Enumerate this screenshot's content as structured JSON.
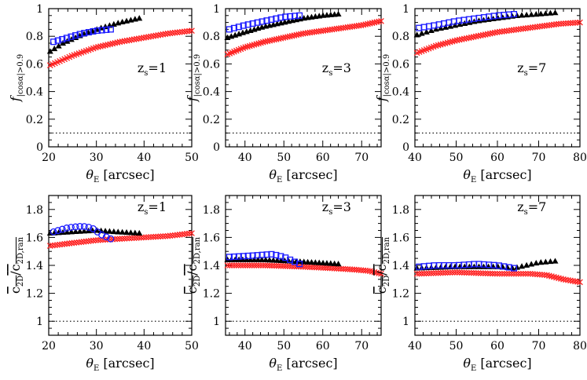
{
  "colors": {
    "red": "#ff2020",
    "black": "#000000",
    "blue": "#1a1aff",
    "axis": "#000000",
    "reference_line": "#000000"
  },
  "labels": {
    "x_axis_symbol": "θ",
    "x_axis_subscript": "E",
    "x_axis_unit": "[arcsec]",
    "top_y_axis_symbol": "f",
    "top_y_axis_subscript": "|cosα|>0.9",
    "bottom_y_axis_numerator": "c",
    "bottom_y_axis_numerator_sub": "2D",
    "bottom_y_axis_denominator": "c",
    "bottom_y_axis_denominator_sub": "2D,ran",
    "z_symbol": "z",
    "z_subscript": "s"
  },
  "chart_data": [
    {
      "type": "scatter",
      "panel": "top-left",
      "z_value": "=1",
      "xlim": [
        20,
        50
      ],
      "ylim": [
        0,
        1
      ],
      "xticks": [
        "20",
        "30",
        "40",
        "50"
      ],
      "yticks": [
        "0",
        "0.2",
        "0.4",
        "0.6",
        "0.8",
        "1"
      ],
      "reference_line": 0.1,
      "series": [
        {
          "marker": "cross",
          "color": "red",
          "x_start": 20.3,
          "x_end": 50.0,
          "n": 60,
          "y_points": [
            [
              20.3,
              0.59
            ],
            [
              25,
              0.66
            ],
            [
              30,
              0.72
            ],
            [
              35,
              0.76
            ],
            [
              40,
              0.79
            ],
            [
              45,
              0.82
            ],
            [
              50,
              0.84
            ]
          ]
        },
        {
          "marker": "triangle",
          "color": "black",
          "x_start": 20.3,
          "x_end": 39.0,
          "n": 22,
          "y_points": [
            [
              20.3,
              0.69
            ],
            [
              23,
              0.75
            ],
            [
              27,
              0.81
            ],
            [
              31,
              0.86
            ],
            [
              35,
              0.9
            ],
            [
              39,
              0.93
            ]
          ]
        },
        {
          "marker": "square",
          "color": "blue",
          "x_start": 21.0,
          "x_end": 33.0,
          "n": 14,
          "y_points": [
            [
              21,
              0.76
            ],
            [
              24,
              0.79
            ],
            [
              27,
              0.82
            ],
            [
              30,
              0.84
            ],
            [
              33,
              0.85
            ]
          ]
        }
      ]
    },
    {
      "type": "scatter",
      "panel": "top-middle",
      "z_value": "=3",
      "xlim": [
        35,
        75
      ],
      "ylim": [
        0,
        1
      ],
      "xticks": [
        "40",
        "50",
        "60",
        "70"
      ],
      "yticks": [
        "0",
        "0.2",
        "0.4",
        "0.6",
        "0.8",
        "1"
      ],
      "reference_line": 0.1,
      "series": [
        {
          "marker": "cross",
          "color": "red",
          "x_start": 35.5,
          "x_end": 75.0,
          "n": 70,
          "y_points": [
            [
              35.5,
              0.67
            ],
            [
              40,
              0.72
            ],
            [
              45,
              0.76
            ],
            [
              50,
              0.79
            ],
            [
              55,
              0.82
            ],
            [
              60,
              0.84
            ],
            [
              65,
              0.86
            ],
            [
              70,
              0.88
            ],
            [
              75,
              0.91
            ]
          ]
        },
        {
          "marker": "triangle",
          "color": "black",
          "x_start": 35.5,
          "x_end": 64.0,
          "n": 30,
          "y_points": [
            [
              35.5,
              0.79
            ],
            [
              40,
              0.83
            ],
            [
              45,
              0.87
            ],
            [
              50,
              0.9
            ],
            [
              55,
              0.93
            ],
            [
              60,
              0.95
            ],
            [
              64,
              0.96
            ]
          ]
        },
        {
          "marker": "square",
          "color": "blue",
          "x_start": 36.0,
          "x_end": 54.0,
          "n": 16,
          "y_points": [
            [
              36,
              0.85
            ],
            [
              40,
              0.88
            ],
            [
              45,
              0.91
            ],
            [
              50,
              0.94
            ],
            [
              54,
              0.95
            ]
          ]
        }
      ]
    },
    {
      "type": "scatter",
      "panel": "top-right",
      "z_value": "=7",
      "xlim": [
        40,
        80
      ],
      "ylim": [
        0,
        1
      ],
      "xticks": [
        "40",
        "50",
        "60",
        "70",
        "80"
      ],
      "yticks": [
        "0",
        "0.2",
        "0.4",
        "0.6",
        "0.8",
        "1"
      ],
      "reference_line": 0.1,
      "series": [
        {
          "marker": "cross",
          "color": "red",
          "x_start": 40.5,
          "x_end": 80.0,
          "n": 70,
          "y_points": [
            [
              40.5,
              0.68
            ],
            [
              45,
              0.73
            ],
            [
              50,
              0.77
            ],
            [
              55,
              0.8
            ],
            [
              60,
              0.83
            ],
            [
              65,
              0.85
            ],
            [
              70,
              0.87
            ],
            [
              75,
              0.89
            ],
            [
              80,
              0.9
            ]
          ]
        },
        {
          "marker": "triangle",
          "color": "black",
          "x_start": 40.5,
          "x_end": 74.0,
          "n": 30,
          "y_points": [
            [
              40.5,
              0.81
            ],
            [
              45,
              0.85
            ],
            [
              50,
              0.88
            ],
            [
              55,
              0.91
            ],
            [
              60,
              0.93
            ],
            [
              65,
              0.95
            ],
            [
              70,
              0.96
            ],
            [
              74,
              0.97
            ]
          ]
        },
        {
          "marker": "square",
          "color": "blue",
          "x_start": 41.0,
          "x_end": 64.0,
          "n": 20,
          "y_points": [
            [
              41,
              0.86
            ],
            [
              45,
              0.88
            ],
            [
              50,
              0.91
            ],
            [
              55,
              0.93
            ],
            [
              60,
              0.95
            ],
            [
              64,
              0.96
            ]
          ]
        }
      ]
    },
    {
      "type": "scatter",
      "panel": "bottom-left",
      "z_value": "=1",
      "xlim": [
        20,
        50
      ],
      "ylim": [
        0.9,
        1.9
      ],
      "xticks": [
        "20",
        "30",
        "40",
        "50"
      ],
      "yticks": [
        "1",
        "1.2",
        "1.4",
        "1.6",
        "1.8"
      ],
      "reference_line": 1.0,
      "series": [
        {
          "marker": "cross",
          "color": "red",
          "x_start": 20.3,
          "x_end": 50.0,
          "n": 60,
          "y_points": [
            [
              20.3,
              1.54
            ],
            [
              25,
              1.56
            ],
            [
              30,
              1.58
            ],
            [
              35,
              1.59
            ],
            [
              40,
              1.6
            ],
            [
              45,
              1.61
            ],
            [
              50,
              1.63
            ]
          ]
        },
        {
          "marker": "triangle",
          "color": "black",
          "x_start": 20.3,
          "x_end": 39.0,
          "n": 22,
          "y_points": [
            [
              20.3,
              1.63
            ],
            [
              25,
              1.64
            ],
            [
              30,
              1.65
            ],
            [
              34,
              1.64
            ],
            [
              39,
              1.63
            ]
          ]
        },
        {
          "marker": "circle",
          "color": "blue",
          "x_start": 21.0,
          "x_end": 33.0,
          "n": 14,
          "y_points": [
            [
              21,
              1.64
            ],
            [
              24,
              1.67
            ],
            [
              27,
              1.68
            ],
            [
              29,
              1.67
            ],
            [
              31,
              1.62
            ],
            [
              33,
              1.59
            ]
          ]
        }
      ]
    },
    {
      "type": "scatter",
      "panel": "bottom-middle",
      "z_value": "=3",
      "xlim": [
        35,
        75
      ],
      "ylim": [
        0.9,
        1.9
      ],
      "xticks": [
        "40",
        "50",
        "60",
        "70"
      ],
      "yticks": [
        "1",
        "1.2",
        "1.4",
        "1.6",
        "1.8"
      ],
      "reference_line": 1.0,
      "series": [
        {
          "marker": "cross",
          "color": "red",
          "x_start": 35.5,
          "x_end": 75.0,
          "n": 70,
          "y_points": [
            [
              35.5,
              1.4
            ],
            [
              45,
              1.4
            ],
            [
              55,
              1.39
            ],
            [
              62,
              1.38
            ],
            [
              68,
              1.37
            ],
            [
              72,
              1.36
            ],
            [
              75,
              1.34
            ]
          ]
        },
        {
          "marker": "triangle",
          "color": "black",
          "x_start": 35.5,
          "x_end": 64.0,
          "n": 30,
          "y_points": [
            [
              35.5,
              1.44
            ],
            [
              45,
              1.44
            ],
            [
              52,
              1.43
            ],
            [
              58,
              1.42
            ],
            [
              64,
              1.41
            ]
          ]
        },
        {
          "marker": "square",
          "color": "blue",
          "x_start": 36.0,
          "x_end": 54.0,
          "n": 16,
          "y_points": [
            [
              36,
              1.46
            ],
            [
              42,
              1.47
            ],
            [
              47,
              1.48
            ],
            [
              50,
              1.46
            ],
            [
              54,
              1.41
            ]
          ]
        }
      ]
    },
    {
      "type": "scatter",
      "panel": "bottom-right",
      "z_value": "=7",
      "xlim": [
        40,
        80
      ],
      "ylim": [
        0.9,
        1.9
      ],
      "xticks": [
        "40",
        "50",
        "60",
        "70",
        "80"
      ],
      "yticks": [
        "1",
        "1.2",
        "1.4",
        "1.6",
        "1.8"
      ],
      "reference_line": 1.0,
      "series": [
        {
          "marker": "cross",
          "color": "red",
          "x_start": 40.5,
          "x_end": 80.0,
          "n": 70,
          "y_points": [
            [
              40.5,
              1.34
            ],
            [
              50,
              1.35
            ],
            [
              60,
              1.34
            ],
            [
              68,
              1.34
            ],
            [
              72,
              1.33
            ],
            [
              76,
              1.3
            ],
            [
              80,
              1.28
            ]
          ]
        },
        {
          "marker": "triangle",
          "color": "black",
          "x_start": 40.5,
          "x_end": 74.0,
          "n": 30,
          "y_points": [
            [
              40.5,
              1.38
            ],
            [
              50,
              1.39
            ],
            [
              60,
              1.39
            ],
            [
              64,
              1.38
            ],
            [
              67,
              1.4
            ],
            [
              70,
              1.42
            ],
            [
              74,
              1.43
            ]
          ]
        },
        {
          "marker": "square",
          "color": "blue",
          "x_start": 41.0,
          "x_end": 64.0,
          "n": 20,
          "y_points": [
            [
              41,
              1.39
            ],
            [
              45,
              1.4
            ],
            [
              50,
              1.4
            ],
            [
              55,
              1.41
            ],
            [
              60,
              1.4
            ],
            [
              64,
              1.38
            ]
          ]
        }
      ]
    }
  ]
}
